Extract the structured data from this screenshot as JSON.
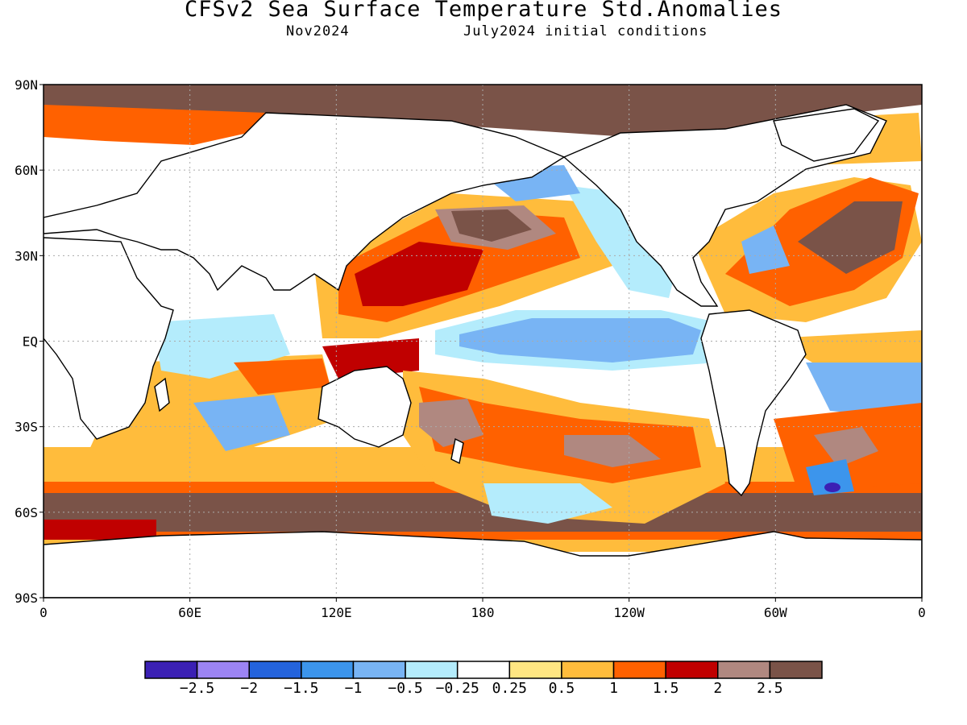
{
  "header": {
    "title": "CFSv2 Sea Surface Temperature Std.Anomalies",
    "target_month": "Nov2024",
    "initial_conditions": "July2024 initial conditions"
  },
  "axes": {
    "lat_labels": [
      "90N",
      "60N",
      "30N",
      "EQ",
      "30S",
      "60S",
      "90S"
    ],
    "lon_labels": [
      "0",
      "60E",
      "120E",
      "180",
      "120W",
      "60W",
      "0"
    ]
  },
  "colorbar": {
    "colors": [
      "#3b20b4",
      "#9c84f4",
      "#2463dc",
      "#3c95ec",
      "#78b4f4",
      "#b4ecfc",
      "#ffffff",
      "#ffe682",
      "#ffbc3c",
      "#ff6100",
      "#c00000",
      "#b08880",
      "#7a5348"
    ],
    "labels": [
      "-2.5",
      "-2",
      "-1.5",
      "-1",
      "-0.5",
      "-0.25",
      "0.25",
      "0.5",
      "1",
      "1.5",
      "2",
      "2.5"
    ]
  },
  "colors": {
    "land": "#ffffff",
    "coastline": "#000000",
    "sea_ice_fill": "#7a5348",
    "grid": "#aaaaaa"
  }
}
